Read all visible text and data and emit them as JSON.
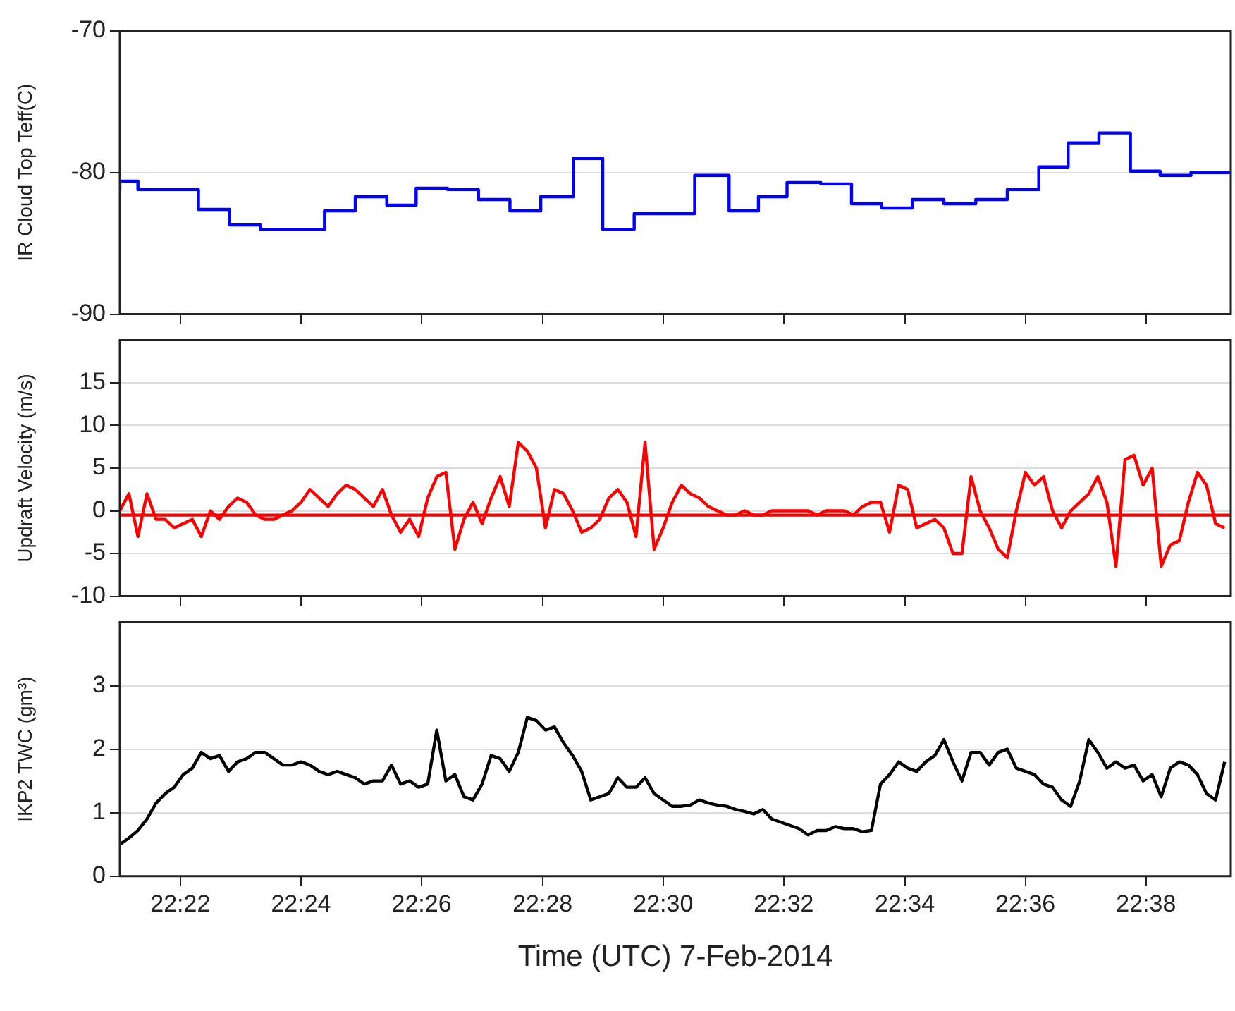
{
  "chart_data": [
    {
      "type": "step",
      "ylabel": "IR Cloud Top Teff(C)",
      "xlim": [
        22.35,
        22.6567
      ],
      "ylim": [
        -90,
        -70
      ],
      "yticks": [
        -90,
        -80,
        -70
      ],
      "xticks": [
        {
          "value": 22.3667,
          "label": null
        },
        {
          "value": 22.4,
          "label": null
        },
        {
          "value": 22.4333,
          "label": null
        },
        {
          "value": 22.4667,
          "label": null
        },
        {
          "value": 22.5,
          "label": null
        },
        {
          "value": 22.5333,
          "label": null
        },
        {
          "value": 22.5667,
          "label": null
        },
        {
          "value": 22.6,
          "label": null
        },
        {
          "value": 22.6333,
          "label": null
        }
      ],
      "tick_labels": "y",
      "grid": "y",
      "line_style": "solid",
      "series": [
        {
          "color": "#0000ff",
          "x": [
            22.35,
            22.355,
            22.3717,
            22.3803,
            22.3888,
            22.4065,
            22.415,
            22.4237,
            22.4318,
            22.4405,
            22.449,
            22.4577,
            22.4662,
            22.4752,
            22.4833,
            22.492,
            22.5087,
            22.5182,
            22.5263,
            22.5342,
            22.5435,
            22.552,
            22.5603,
            22.5688,
            22.5775,
            22.5863,
            22.595,
            22.6037,
            22.6118,
            22.6203,
            22.629,
            22.6372,
            22.6457,
            22.6547,
            22.6567
          ],
          "values": [
            -81.2,
            -80.6,
            -81.2,
            -82.6,
            -83.7,
            -84.0,
            -82.7,
            -81.7,
            -82.3,
            -81.1,
            -81.2,
            -81.9,
            -82.7,
            -81.7,
            -79.0,
            -84.0,
            -82.9,
            -80.2,
            -82.7,
            -81.7,
            -80.7,
            -80.8,
            -82.2,
            -82.5,
            -81.9,
            -82.2,
            -81.9,
            -81.2,
            -79.6,
            -77.9,
            -77.2,
            -79.9,
            -80.2,
            -80.0,
            -80.0
          ]
        }
      ]
    },
    {
      "type": "line",
      "ylabel": "Updraft Velocity (m/s)",
      "xlim": [
        22.35,
        22.6567
      ],
      "ylim": [
        -10,
        20
      ],
      "yticks": [
        -10,
        -5,
        0,
        5,
        10,
        15
      ],
      "xticks": [
        {
          "value": 22.3667,
          "label": null
        },
        {
          "value": 22.4,
          "label": null
        },
        {
          "value": 22.4333,
          "label": null
        },
        {
          "value": 22.4667,
          "label": null
        },
        {
          "value": 22.5,
          "label": null
        },
        {
          "value": 22.5333,
          "label": null
        },
        {
          "value": 22.5667,
          "label": null
        },
        {
          "value": 22.6,
          "label": null
        },
        {
          "value": 22.6333,
          "label": null
        }
      ],
      "tick_labels": "y",
      "grid": "y",
      "line_style": "solid",
      "ref_lines": [
        {
          "axis": "y",
          "value": -0.5,
          "color": "#ff0000"
        }
      ],
      "x": [
        22.35,
        22.3525,
        22.355,
        22.3575,
        22.36,
        22.3625,
        22.365,
        22.3675,
        22.37,
        22.3725,
        22.375,
        22.3775,
        22.38,
        22.3825,
        22.385,
        22.3875,
        22.39,
        22.3925,
        22.395,
        22.3975,
        22.4,
        22.4025,
        22.405,
        22.4075,
        22.41,
        22.4125,
        22.415,
        22.4175,
        22.42,
        22.4225,
        22.425,
        22.4275,
        22.43,
        22.4325,
        22.435,
        22.4375,
        22.44,
        22.4425,
        22.445,
        22.4475,
        22.45,
        22.4525,
        22.455,
        22.4575,
        22.46,
        22.4625,
        22.465,
        22.4675,
        22.47,
        22.4725,
        22.475,
        22.4775,
        22.48,
        22.4825,
        22.485,
        22.4875,
        22.49,
        22.4925,
        22.495,
        22.4975,
        22.5,
        22.5025,
        22.505,
        22.5075,
        22.51,
        22.5125,
        22.515,
        22.5175,
        22.52,
        22.5225,
        22.525,
        22.5275,
        22.53,
        22.5325,
        22.535,
        22.5375,
        22.54,
        22.5425,
        22.545,
        22.5475,
        22.55,
        22.5525,
        22.555,
        22.5575,
        22.56,
        22.5625,
        22.565,
        22.5675,
        22.57,
        22.5725,
        22.575,
        22.5775,
        22.58,
        22.5825,
        22.585,
        22.5875,
        22.59,
        22.5925,
        22.595,
        22.5975,
        22.6,
        22.6025,
        22.605,
        22.6075,
        22.61,
        22.6125,
        22.615,
        22.6175,
        22.62,
        22.6225,
        22.625,
        22.6275,
        22.63,
        22.6325,
        22.635,
        22.6375,
        22.64,
        22.6425,
        22.645,
        22.6475,
        22.65,
        22.6525,
        22.655
      ],
      "series": [
        {
          "color": "#ff0000",
          "values": [
            0,
            2,
            -3,
            2,
            -1,
            -1,
            -2,
            -1.5,
            -1,
            -3,
            0,
            -1,
            0.5,
            1.5,
            1,
            -0.5,
            -1,
            -1,
            -0.5,
            0,
            1,
            2.5,
            1.5,
            0.5,
            2,
            3,
            2.5,
            1.5,
            0.5,
            2.5,
            -0.5,
            -2.5,
            -1,
            -3,
            1.5,
            4,
            4.5,
            -4.5,
            -1,
            1,
            -1.5,
            1.5,
            4,
            0.5,
            8,
            7,
            5,
            -2,
            2.5,
            2,
            0,
            -2.5,
            -2,
            -1,
            1.5,
            2.5,
            1,
            -3,
            8,
            -4.5,
            -2,
            1,
            3,
            2,
            1.5,
            0.5,
            0,
            -0.5,
            -0.5,
            0,
            -0.5,
            -0.5,
            0,
            0,
            0,
            0,
            0,
            -0.5,
            0,
            0,
            0,
            -0.5,
            0.5,
            1,
            1,
            -2.5,
            3,
            2.5,
            -2,
            -1.5,
            -1,
            -2,
            -5,
            -5,
            4,
            0,
            -2,
            -4.5,
            -5.5,
            0,
            4.5,
            3,
            4,
            0,
            -2,
            0,
            1,
            2,
            4,
            1,
            -6.5,
            6,
            6.5,
            3,
            5,
            -6.5,
            -4,
            -3.5,
            1,
            4.5,
            3,
            -1.5,
            -2
          ]
        }
      ]
    },
    {
      "type": "line",
      "ylabel": "IKP2 TWC (gm³)",
      "xlabel": "Time (UTC) 7-Feb-2014",
      "xlim": [
        22.35,
        22.6567
      ],
      "ylim": [
        0,
        4
      ],
      "yticks": [
        0,
        1,
        2,
        3
      ],
      "xticks": [
        {
          "value": 22.3667,
          "label": "22:22"
        },
        {
          "value": 22.4,
          "label": "22:24"
        },
        {
          "value": 22.4333,
          "label": "22:26"
        },
        {
          "value": 22.4667,
          "label": "22:28"
        },
        {
          "value": 22.5,
          "label": "22:30"
        },
        {
          "value": 22.5333,
          "label": "22:32"
        },
        {
          "value": 22.5667,
          "label": "22:34"
        },
        {
          "value": 22.6,
          "label": "22:36"
        },
        {
          "value": 22.6333,
          "label": "22:38"
        }
      ],
      "grid": "y",
      "line_style": "solid",
      "x": [
        22.35,
        22.3525,
        22.355,
        22.3575,
        22.36,
        22.3625,
        22.365,
        22.3675,
        22.37,
        22.3725,
        22.375,
        22.3775,
        22.38,
        22.3825,
        22.385,
        22.3875,
        22.39,
        22.3925,
        22.395,
        22.3975,
        22.4,
        22.4025,
        22.405,
        22.4075,
        22.41,
        22.4125,
        22.415,
        22.4175,
        22.42,
        22.4225,
        22.425,
        22.4275,
        22.43,
        22.4325,
        22.435,
        22.4375,
        22.44,
        22.4425,
        22.445,
        22.4475,
        22.45,
        22.4525,
        22.455,
        22.4575,
        22.46,
        22.4625,
        22.465,
        22.4675,
        22.47,
        22.4725,
        22.475,
        22.4775,
        22.48,
        22.4825,
        22.485,
        22.4875,
        22.49,
        22.4925,
        22.495,
        22.4975,
        22.5,
        22.5025,
        22.505,
        22.5075,
        22.51,
        22.5125,
        22.515,
        22.5175,
        22.52,
        22.5225,
        22.525,
        22.5275,
        22.53,
        22.5325,
        22.535,
        22.5375,
        22.54,
        22.5425,
        22.545,
        22.5475,
        22.55,
        22.5525,
        22.555,
        22.5575,
        22.56,
        22.5625,
        22.565,
        22.5675,
        22.57,
        22.5725,
        22.575,
        22.5775,
        22.58,
        22.5825,
        22.585,
        22.5875,
        22.59,
        22.5925,
        22.595,
        22.5975,
        22.6,
        22.6025,
        22.605,
        22.6075,
        22.61,
        22.6125,
        22.615,
        22.6175,
        22.62,
        22.6225,
        22.625,
        22.6275,
        22.63,
        22.6325,
        22.635,
        22.6375,
        22.64,
        22.6425,
        22.645,
        22.6475,
        22.65,
        22.6525,
        22.655
      ],
      "series": [
        {
          "color": "#000000",
          "values": [
            0.5,
            0.6,
            0.72,
            0.9,
            1.15,
            1.3,
            1.4,
            1.6,
            1.7,
            1.95,
            1.85,
            1.9,
            1.65,
            1.8,
            1.85,
            1.95,
            1.95,
            1.85,
            1.75,
            1.75,
            1.8,
            1.75,
            1.65,
            1.6,
            1.65,
            1.6,
            1.55,
            1.45,
            1.5,
            1.5,
            1.75,
            1.45,
            1.5,
            1.4,
            1.45,
            2.3,
            1.5,
            1.6,
            1.25,
            1.2,
            1.45,
            1.9,
            1.85,
            1.65,
            1.95,
            2.5,
            2.45,
            2.3,
            2.35,
            2.1,
            1.9,
            1.65,
            1.2,
            1.25,
            1.3,
            1.55,
            1.4,
            1.4,
            1.55,
            1.3,
            1.2,
            1.1,
            1.1,
            1.12,
            1.2,
            1.15,
            1.12,
            1.1,
            1.05,
            1.02,
            0.98,
            1.05,
            0.9,
            0.85,
            0.8,
            0.75,
            0.65,
            0.72,
            0.72,
            0.78,
            0.75,
            0.75,
            0.7,
            0.72,
            1.45,
            1.6,
            1.8,
            1.7,
            1.65,
            1.8,
            1.9,
            2.15,
            1.8,
            1.5,
            1.95,
            1.95,
            1.75,
            1.95,
            2.0,
            1.7,
            1.65,
            1.6,
            1.45,
            1.4,
            1.2,
            1.1,
            1.5,
            2.15,
            1.95,
            1.7,
            1.8,
            1.7,
            1.75,
            1.5,
            1.6,
            1.25,
            1.7,
            1.8,
            1.75,
            1.6,
            1.3,
            1.2,
            1.8
          ]
        }
      ]
    }
  ]
}
